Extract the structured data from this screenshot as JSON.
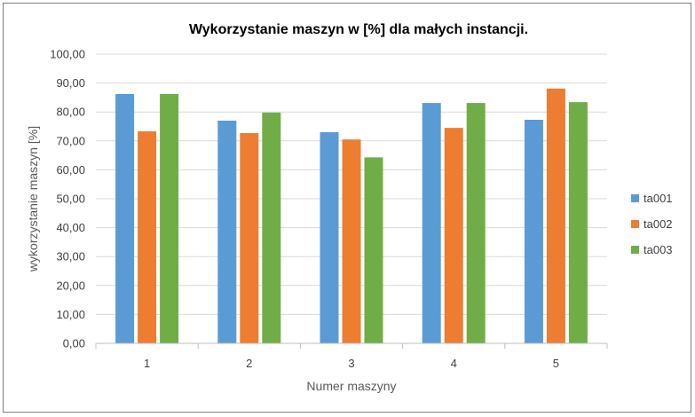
{
  "chart_data": {
    "type": "bar",
    "title": "Wykorzystanie maszyn w [%] dla małych instancji.",
    "xlabel": "Numer maszyny",
    "ylabel": "wykorzystanie maszyn [%]",
    "categories": [
      "1",
      "2",
      "3",
      "4",
      "5"
    ],
    "ylim": [
      0,
      100
    ],
    "yticks": [
      "0,00",
      "10,00",
      "20,00",
      "30,00",
      "40,00",
      "50,00",
      "60,00",
      "70,00",
      "80,00",
      "90,00",
      "100,00"
    ],
    "grid": true,
    "legend_position": "right",
    "series": [
      {
        "name": "ta001",
        "color": "#5b9bd5",
        "values": [
          86.2,
          77.0,
          73.0,
          83.1,
          77.3
        ]
      },
      {
        "name": "ta002",
        "color": "#ed7d31",
        "values": [
          73.3,
          72.7,
          70.5,
          74.5,
          88.1
        ]
      },
      {
        "name": "ta003",
        "color": "#70ad47",
        "values": [
          86.2,
          79.8,
          64.3,
          83.1,
          83.4
        ]
      }
    ]
  }
}
